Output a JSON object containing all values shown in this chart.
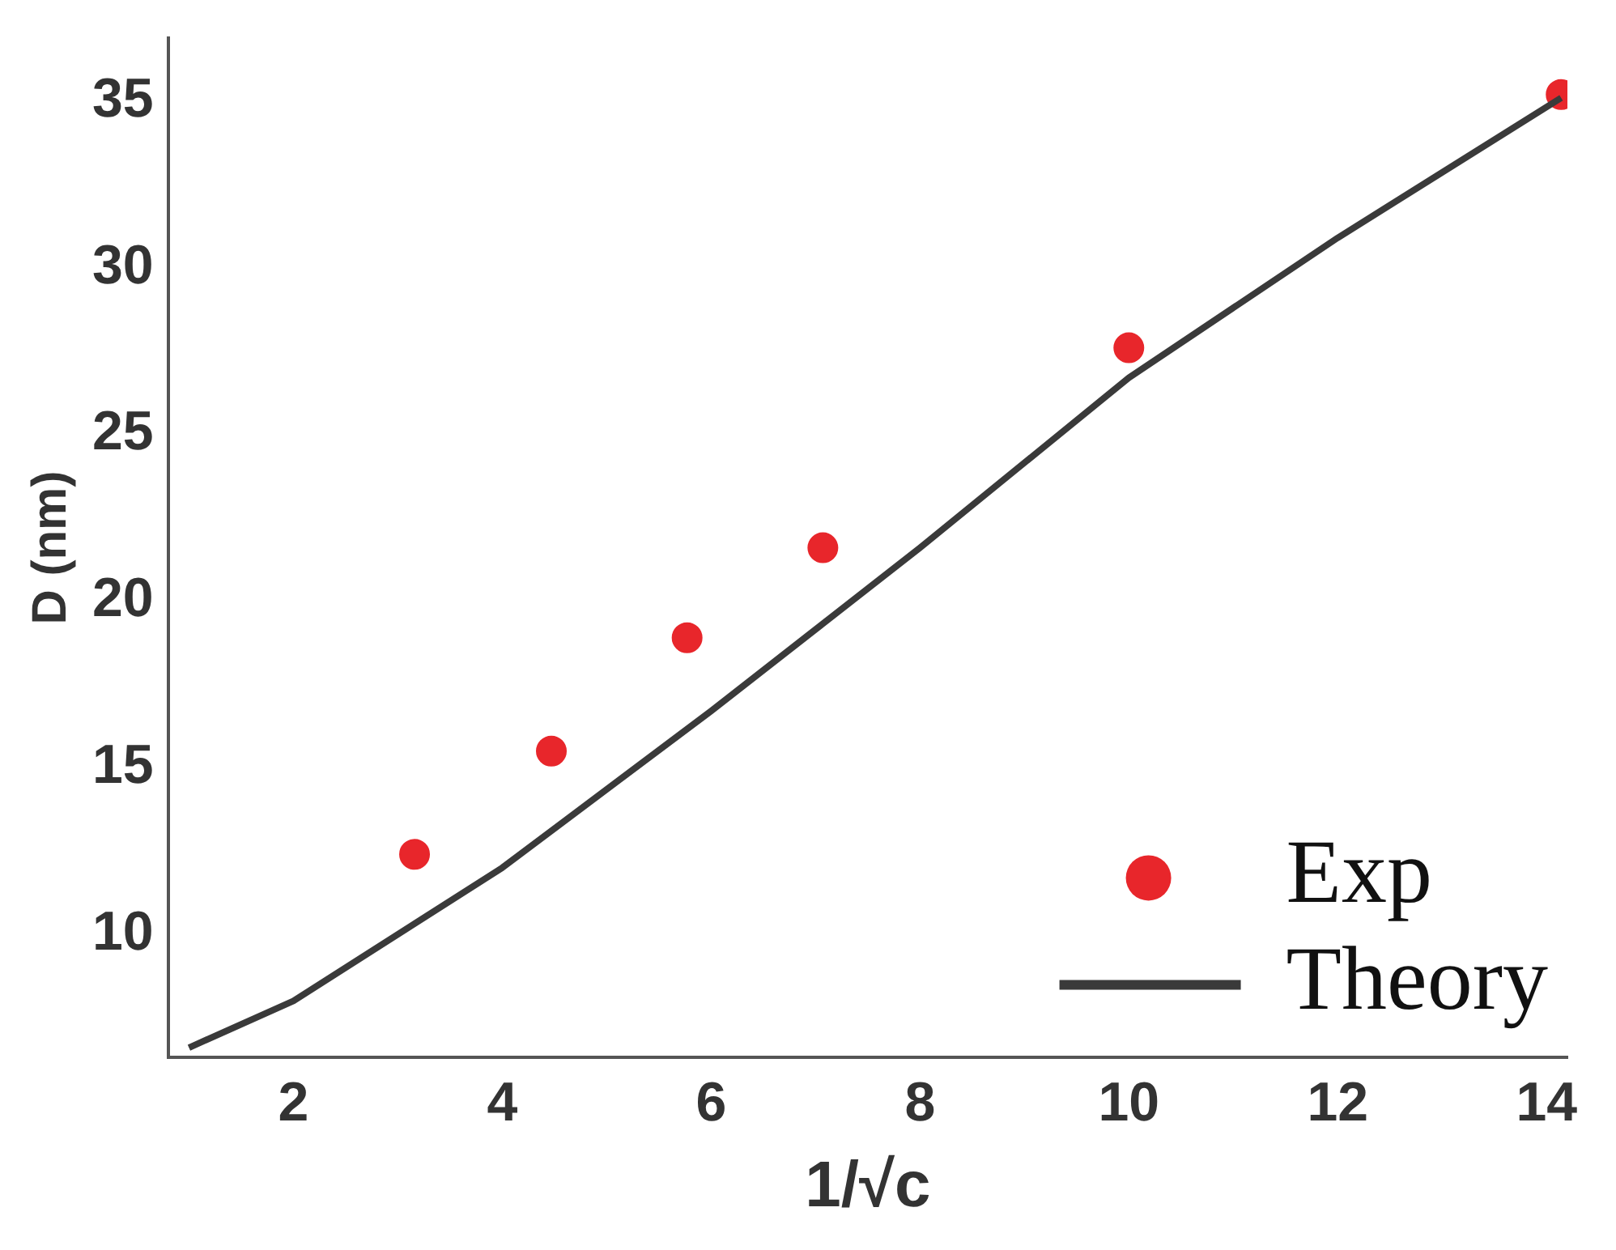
{
  "chart_data": {
    "type": "scatter",
    "xlabel": "1/√c",
    "ylabel": "D (nm)",
    "xlim": [
      0.8,
      14.2
    ],
    "ylim": [
      6.3,
      36.9
    ],
    "xticks": [
      2,
      4,
      6,
      8,
      10,
      12,
      14
    ],
    "yticks": [
      10,
      15,
      20,
      25,
      30,
      35
    ],
    "grid": false,
    "legend": "bottom right",
    "series": [
      {
        "name": "Exp",
        "type": "scatter",
        "color": "#e8262b",
        "marker": "circle",
        "x": [
          3.16,
          4.47,
          5.77,
          7.07,
          10,
          14.14
        ],
        "values": [
          12.4,
          15.5,
          18.9,
          21.6,
          27.6,
          35.2
        ]
      },
      {
        "name": "Theory",
        "type": "line",
        "color": "#3a3a3a",
        "marker": "none",
        "line_style": "solid",
        "x": [
          1,
          2,
          4,
          6,
          8,
          10,
          12,
          14.14
        ],
        "values": [
          6.6,
          8.0,
          12.0,
          16.7,
          21.6,
          26.7,
          30.9,
          35.1
        ]
      }
    ]
  }
}
